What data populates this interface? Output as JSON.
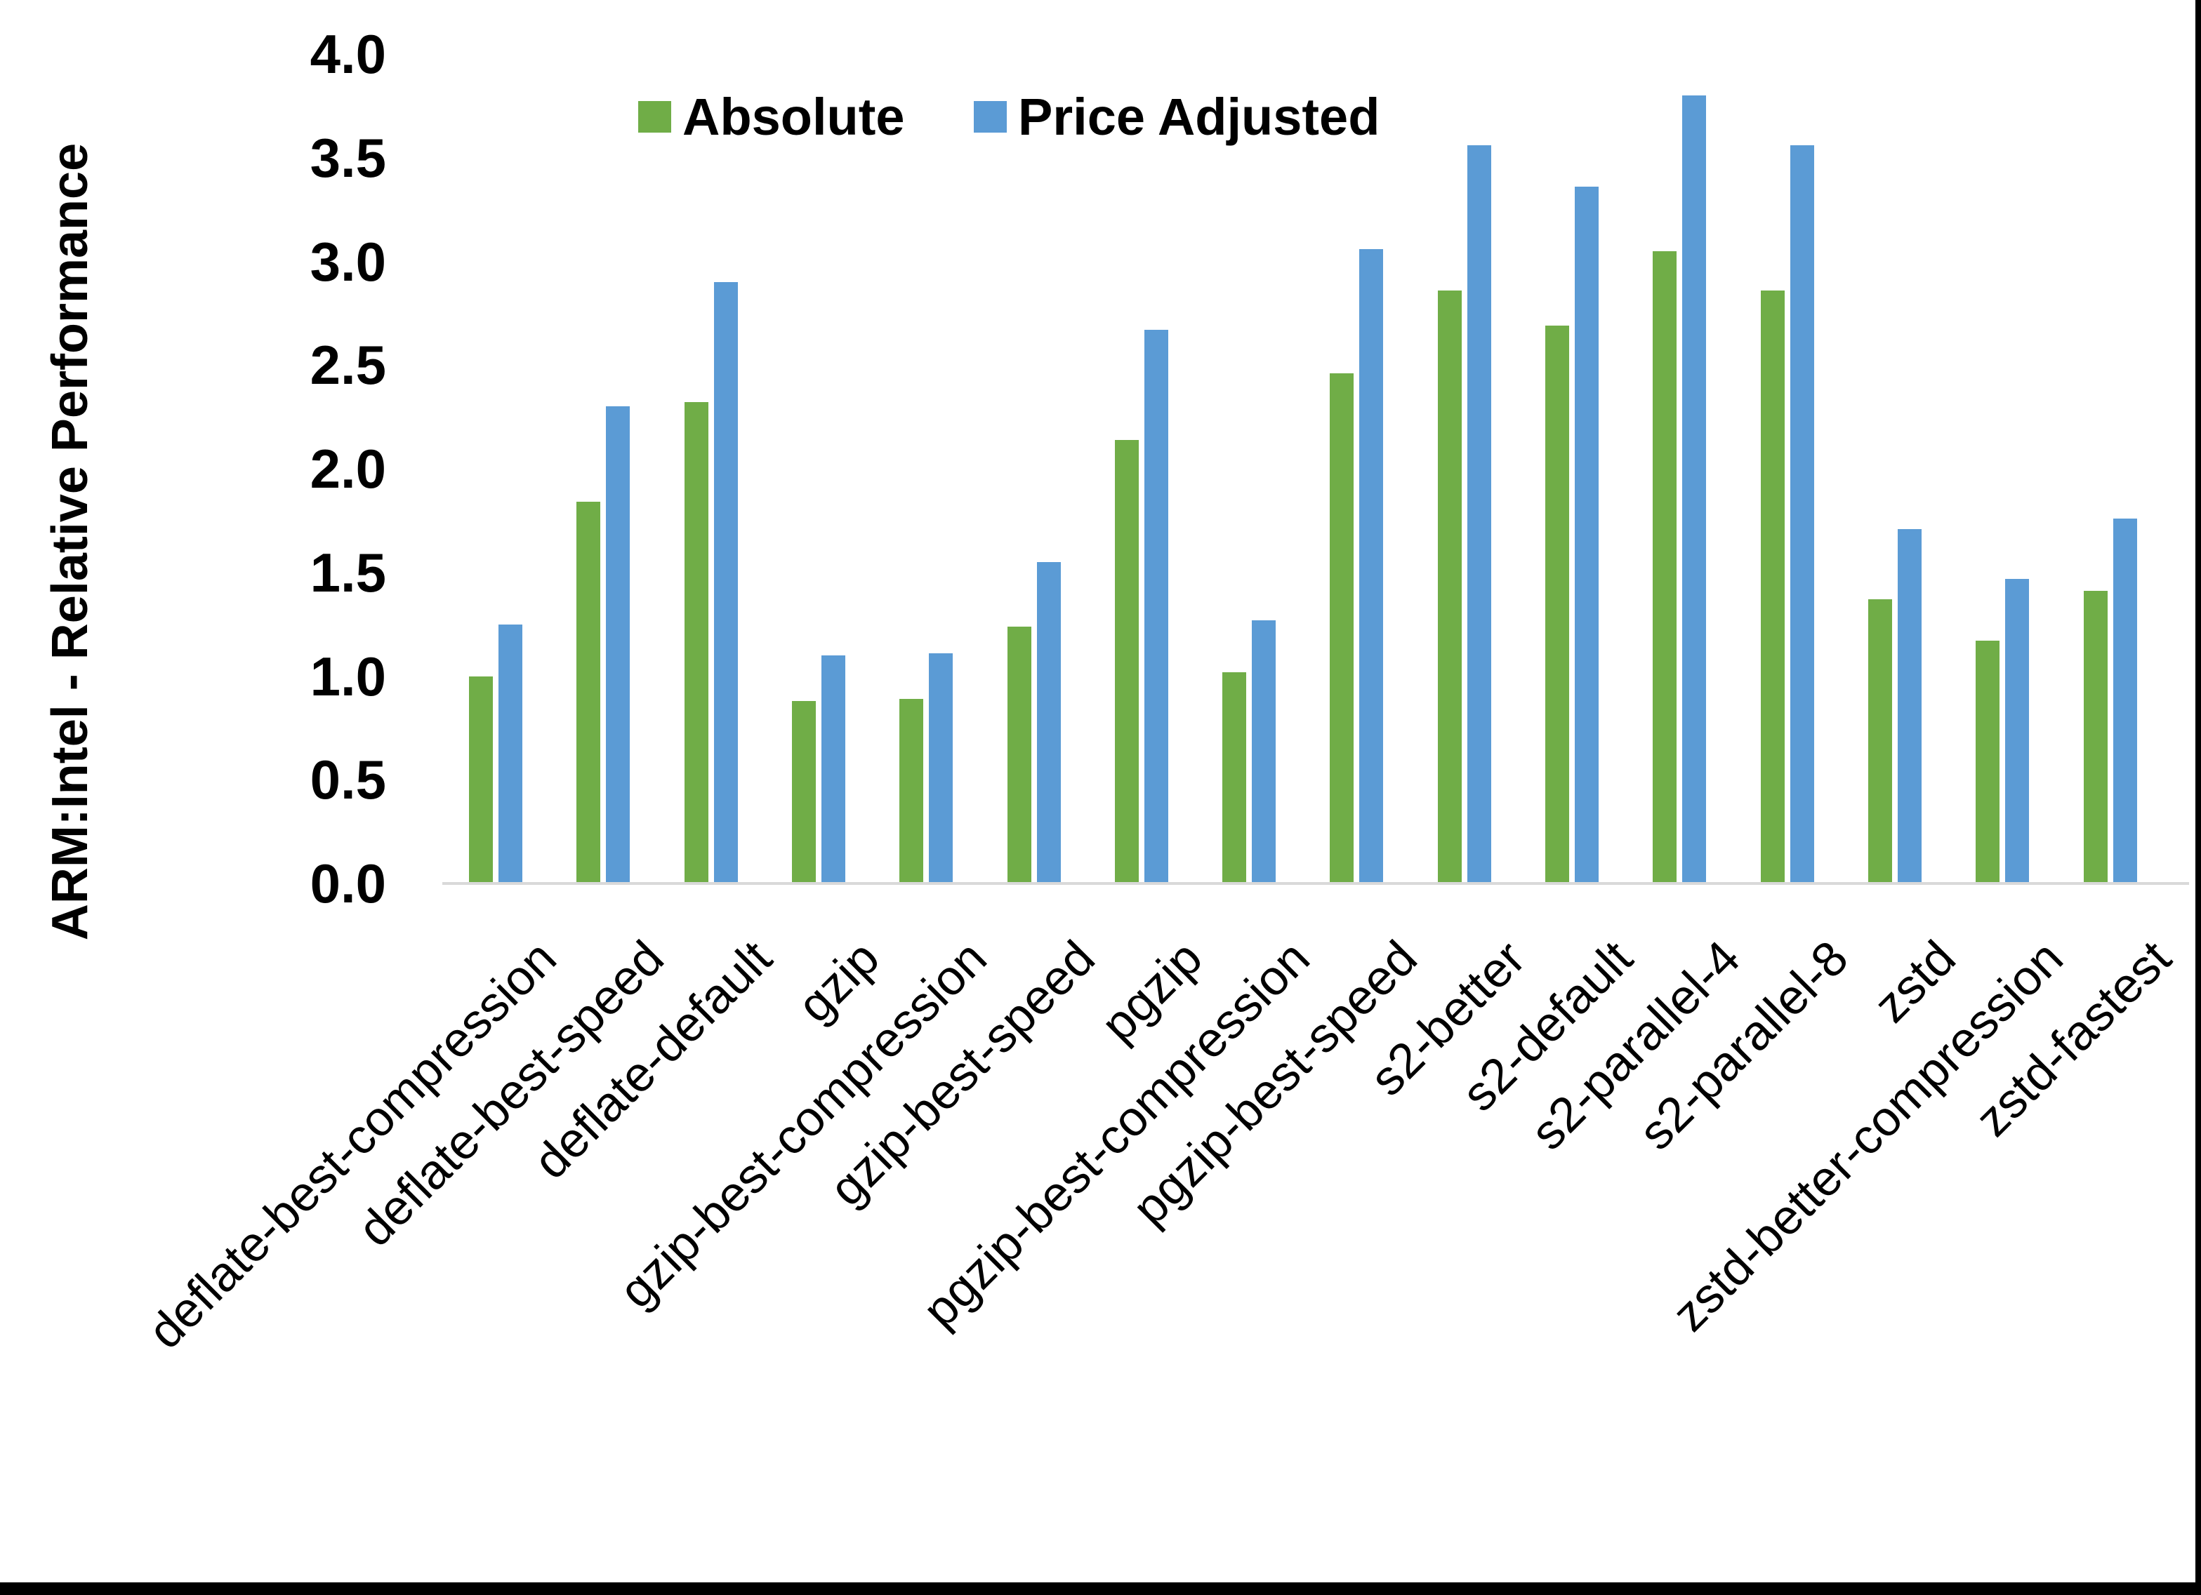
{
  "chart_data": {
    "type": "bar",
    "title": "",
    "ylabel": "ARM:Intel - Relative Performance",
    "xlabel": "",
    "ylim": [
      0,
      4
    ],
    "ytick_labels": [
      "0.0",
      "0.5",
      "1.0",
      "1.5",
      "2.0",
      "2.5",
      "3.0",
      "3.5",
      "4.0"
    ],
    "grid": false,
    "legend_position": "top-center",
    "categories": [
      "deflate-best-compression",
      "deflate-best-speed",
      "deflate-default",
      "gzip",
      "gzip-best-compression",
      "gzip-best-speed",
      "pgzip",
      "pgzip-best-compression",
      "pgzip-best-speed",
      "s2-better",
      "s2-default",
      "s2-parallel-4",
      "s2-parallel-8",
      "zstd",
      "zstd-better-compression",
      "zstd-fastest"
    ],
    "series": [
      {
        "name": "Absolute",
        "color": "#70AD47",
        "values": [
          1.0,
          1.84,
          2.32,
          0.88,
          0.89,
          1.24,
          2.14,
          1.02,
          2.46,
          2.86,
          2.69,
          3.05,
          2.86,
          1.37,
          1.17,
          1.41
        ]
      },
      {
        "name": "Price Adjusted",
        "color": "#5B9BD5",
        "values": [
          1.25,
          2.3,
          2.9,
          1.1,
          1.11,
          1.55,
          2.67,
          1.27,
          3.06,
          3.56,
          3.36,
          3.8,
          3.56,
          1.71,
          1.47,
          1.76
        ]
      }
    ]
  },
  "colors": {
    "absolute_green": "#70AD47",
    "price_adjusted_blue": "#5B9BD5",
    "axis_line_gray": "#D9D9D9",
    "frame_black": "#000000",
    "background": "#FFFFFF"
  }
}
